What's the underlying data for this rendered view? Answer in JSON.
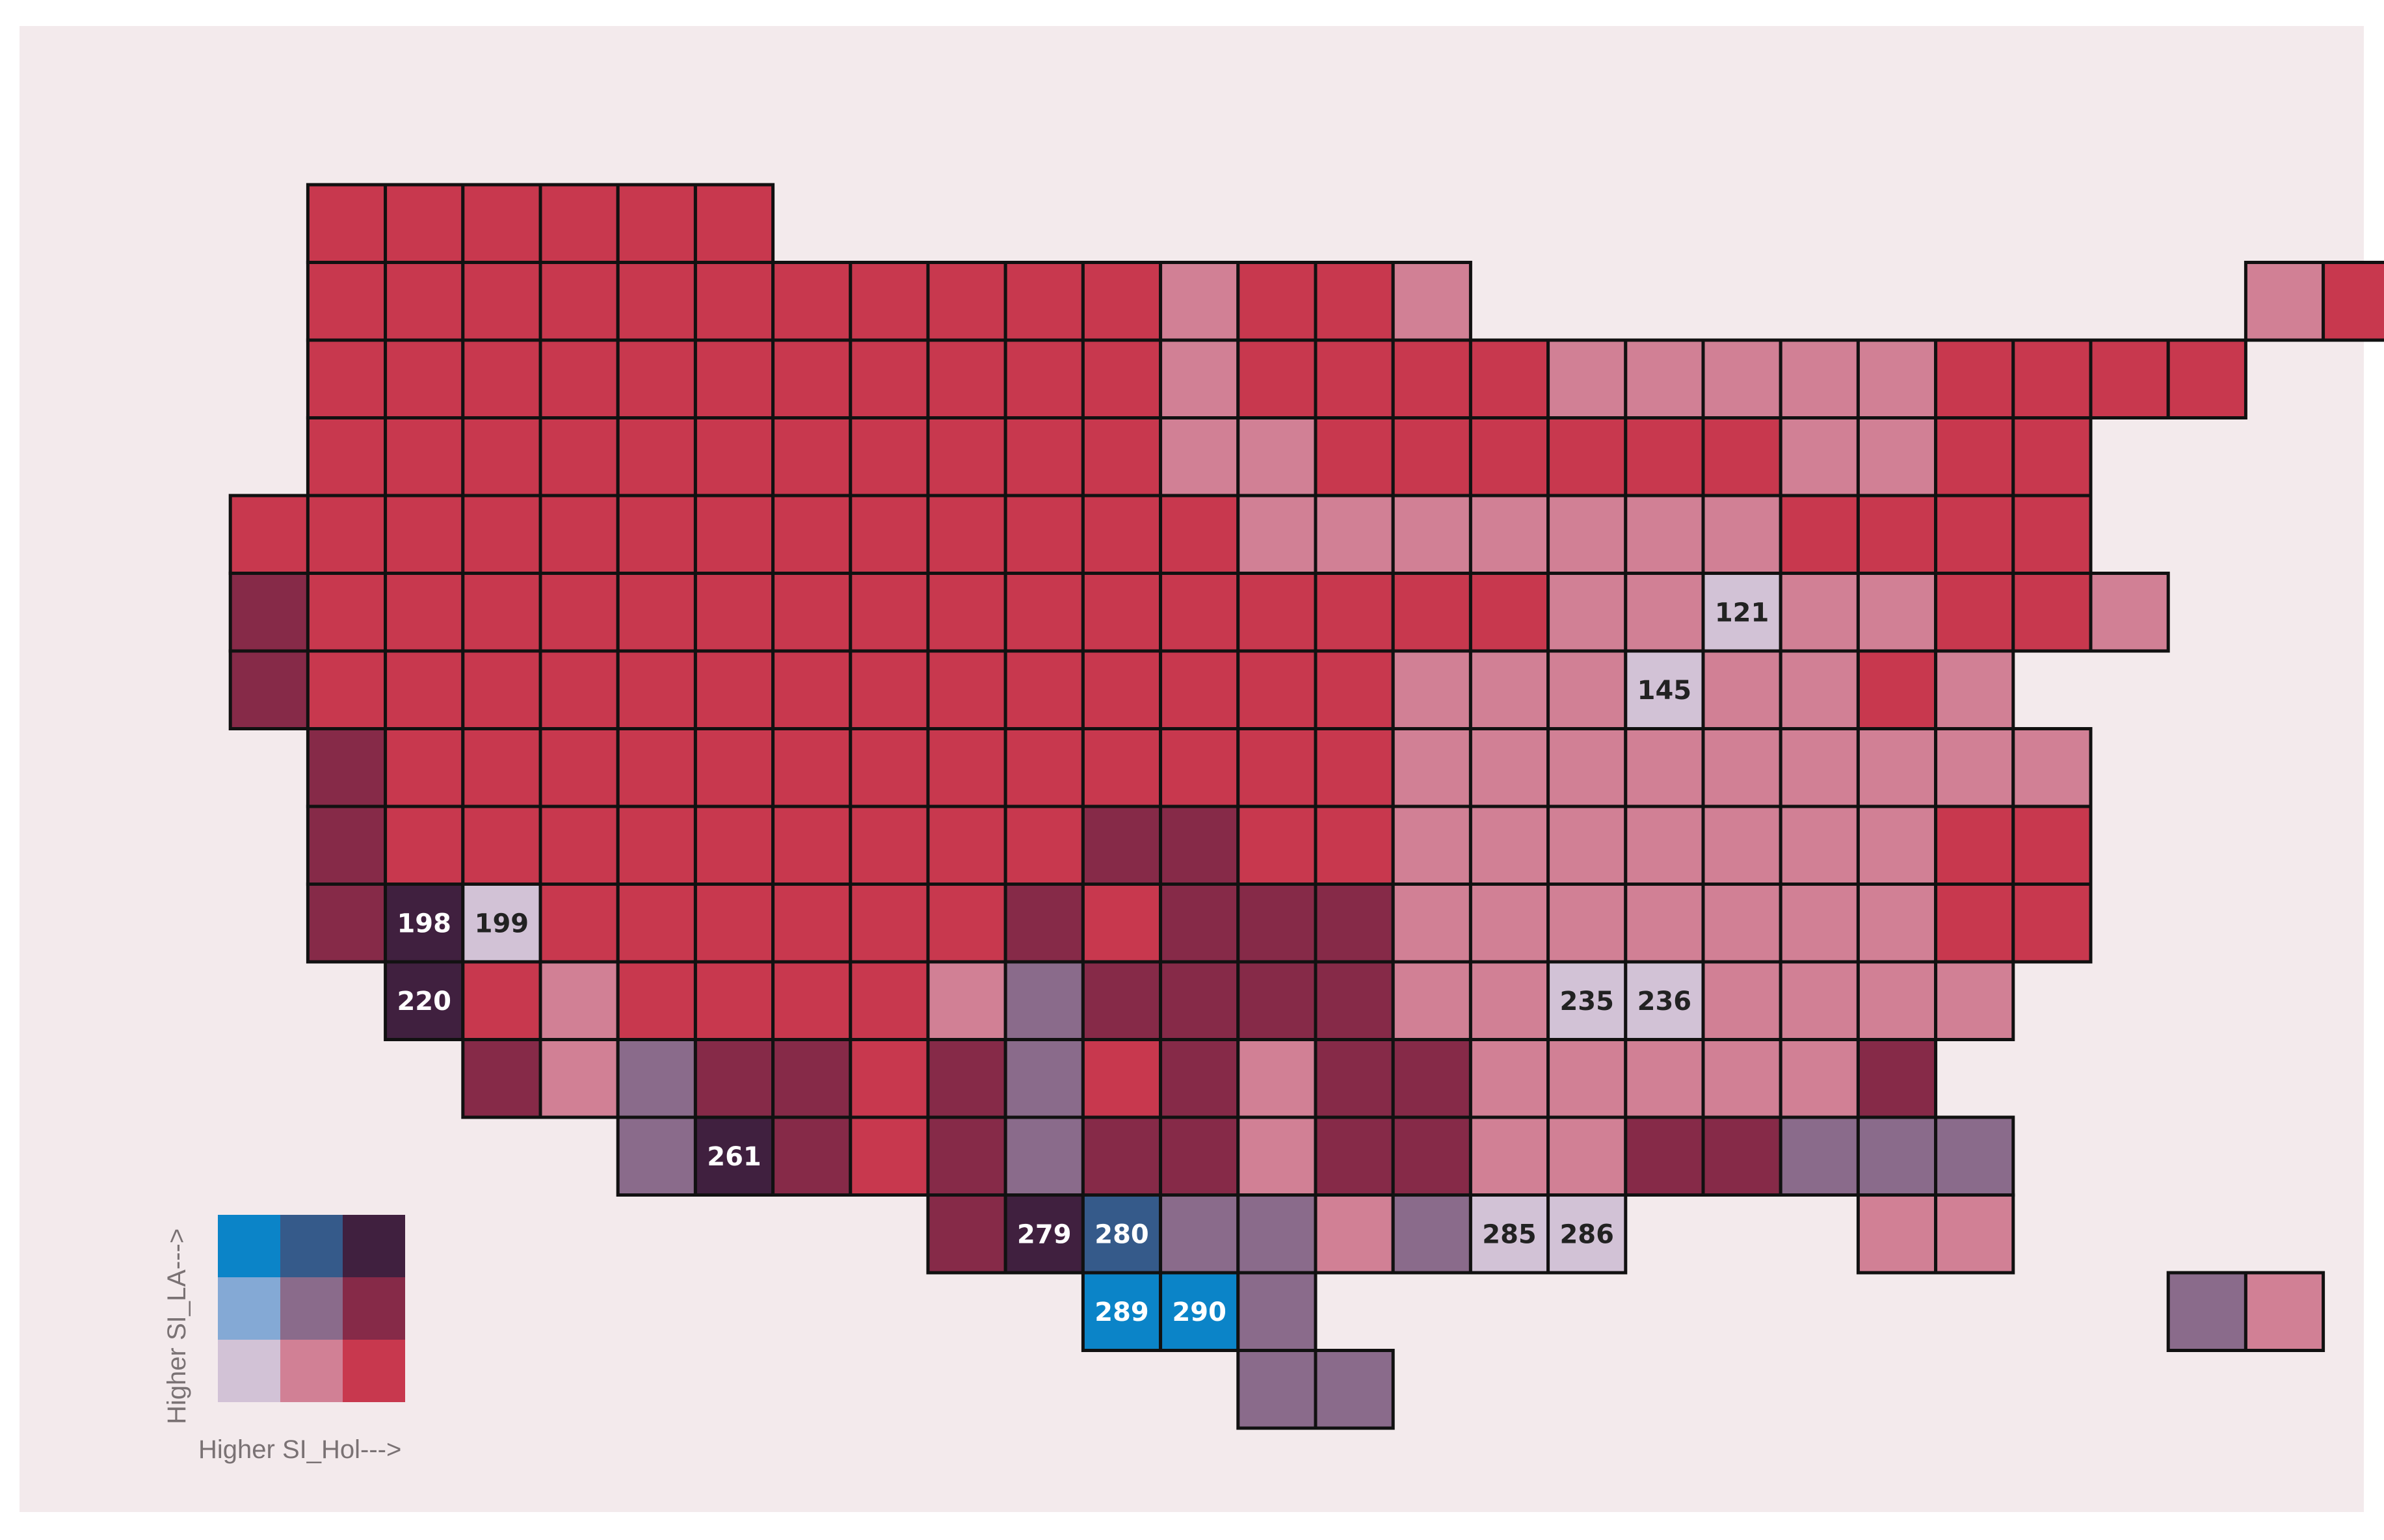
{
  "legend": {
    "x_label": "Higher SI_Hol--->",
    "y_label": "Higher SI_LA--->",
    "matrix": [
      [
        "#0b84c8",
        "#355a8a",
        "#40203f"
      ],
      [
        "#84a9d5",
        "#8a6b8b",
        "#862a48"
      ],
      [
        "#d2c2d6",
        "#d18095",
        "#c8384e"
      ]
    ]
  },
  "palette": {
    "R": "#c8384e",
    "P": "#d18095",
    "D": "#862a48",
    "M": "#8a6b8b",
    "L": "#d2c2d6",
    "N": "#40203f",
    "B": "#0b84c8",
    "T": "#355a8a"
  },
  "rows": [
    "..RRRRRR.....................RR",
    "..RRRRRRRRRRRPRRP..........PRR.",
    "..RRRRRRRRRRRPRRRRPPPPPRRRR....",
    "..RRRRRRRRRRRPPRRRRRRPPRR......",
    ".RRRRRRRRRRRRRPPPPPPPRRRR......",
    ".DRRRRRRRRRRRRRRRRPPLPPRRP.....",
    ".DRRRRRRRRRRRRRRPPPLPPRP.......",
    "..DRRRRRRRRRRRRRPPPPPPPPP......",
    "..DRRRRRRRRRDDRRPPPPPPPRR......",
    "..DNLRRRRRRDRDDDPPPPPPPRR......",
    "...NRPRRRRPMDDDDPPLLPPPP.......",
    "....DPMDDRDMRDPDDPPPPPD........",
    "......MNDRDMDDPDDPPDDMMM.......",
    "..........DNTMMPMLL...PP.......",
    "............BBM...........MP...",
    "..............MM..............."
  ],
  "cell_labels": [
    {
      "row": 5,
      "col": 20,
      "text": "121"
    },
    {
      "row": 6,
      "col": 19,
      "text": "145"
    },
    {
      "row": 9,
      "col": 3,
      "text": "198"
    },
    {
      "row": 9,
      "col": 4,
      "text": "199"
    },
    {
      "row": 10,
      "col": 3,
      "text": "220"
    },
    {
      "row": 10,
      "col": 18,
      "text": "235"
    },
    {
      "row": 10,
      "col": 19,
      "text": "236"
    },
    {
      "row": 12,
      "col": 7,
      "text": "261"
    },
    {
      "row": 13,
      "col": 11,
      "text": "279"
    },
    {
      "row": 13,
      "col": 12,
      "text": "280"
    },
    {
      "row": 13,
      "col": 17,
      "text": "285"
    },
    {
      "row": 13,
      "col": 18,
      "text": "286"
    },
    {
      "row": 14,
      "col": 12,
      "text": "289"
    },
    {
      "row": 14,
      "col": 13,
      "text": "290"
    }
  ]
}
